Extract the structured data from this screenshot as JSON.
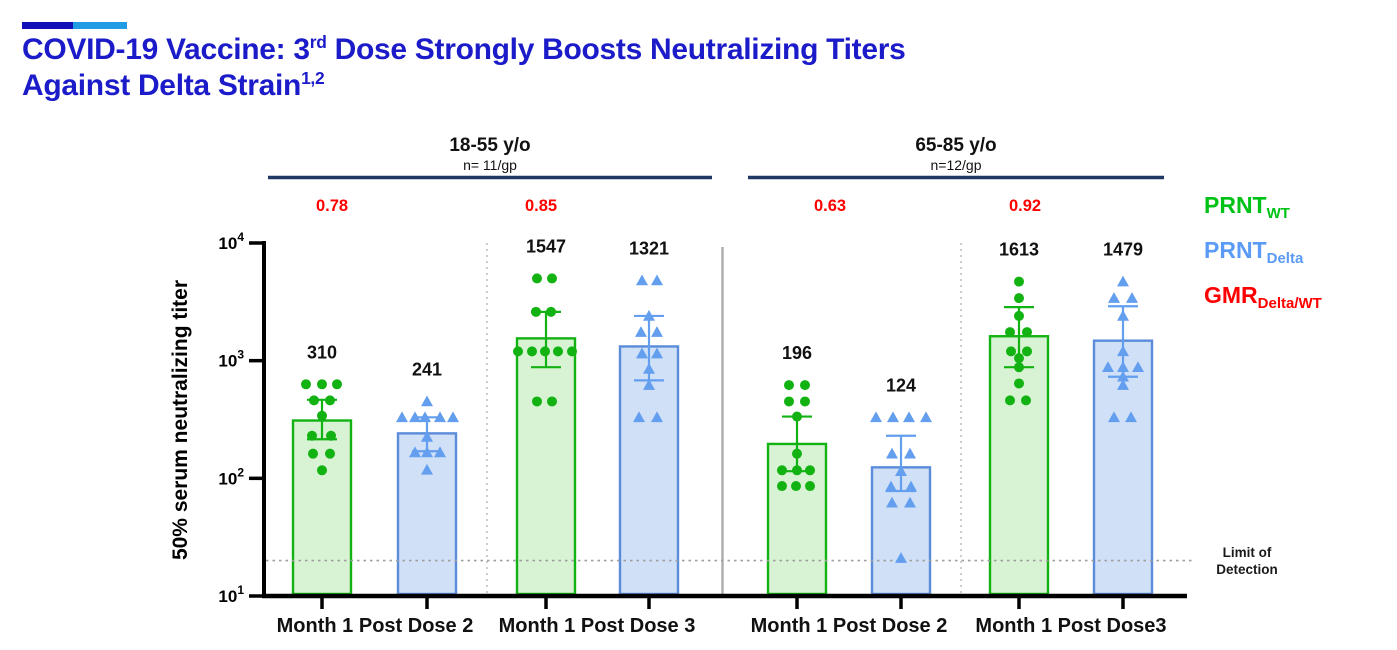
{
  "header": {
    "accent": {
      "dark_color": "#1111B7",
      "light_color": "#1F9CE4"
    },
    "title": {
      "color": "#1B1BC9",
      "line1_pre": "COVID-19 Vaccine: 3",
      "line1_sup": "rd",
      "line1_post": " Dose Strongly Boosts Neutralizing Titers",
      "line2_pre": "Against Delta Strain",
      "line2_sup": "1,2"
    }
  },
  "chart_data": {
    "type": "bar",
    "y_scale": "log10",
    "ylim": [
      10,
      10000
    ],
    "ylabel": "50% serum neutralizing titer",
    "y_tick_exponents": [
      1,
      2,
      3,
      4
    ],
    "grid": false,
    "limit_of_detection": {
      "value": 20,
      "label_line1": "Limit of",
      "label_line2": "Detection"
    },
    "age_groups": [
      {
        "label": "18-55 y/o",
        "n_label": "n= 11/gp"
      },
      {
        "label": "65-85 y/o",
        "n_label": "n=12/gp"
      }
    ],
    "x_categories": [
      "Month 1 Post Dose 2",
      "Month 1 Post Dose 3",
      "Month 1 Post Dose 2",
      "Month 1 Post  Dose3"
    ],
    "gmr_values": [
      "0.78",
      "0.85",
      "0.63",
      "0.92"
    ],
    "gmr_color": "#FF0000",
    "legend": [
      {
        "main": "PRNT",
        "sub": "WT",
        "color": "#00C216"
      },
      {
        "main": "PRNT",
        "sub": "Delta",
        "color": "#5B9BF5"
      },
      {
        "main": "GMR",
        "sub": "Delta/WT",
        "color": "#FF0000"
      }
    ],
    "series_colors": {
      "wt": {
        "marker": "#12B212",
        "bar_fill": "#D7F3D3",
        "bar_stroke": "#12B212"
      },
      "delta": {
        "marker": "#639EEF",
        "bar_fill": "#CFE0F7",
        "bar_stroke": "#5B8CD9"
      }
    },
    "bars": [
      {
        "series": "wt",
        "age_group": "18-55 y/o",
        "timepoint": "Month 1 Post Dose 2",
        "geometric_mean": 310,
        "label": "310",
        "ci": [
          215,
          465
        ],
        "points": [
          [
            -16,
            630
          ],
          [
            0,
            630
          ],
          [
            15,
            630
          ],
          [
            -8,
            460
          ],
          [
            8,
            460
          ],
          [
            0,
            340
          ],
          [
            -10,
            230
          ],
          [
            9,
            230
          ],
          [
            -9,
            162
          ],
          [
            8,
            162
          ],
          [
            0,
            117
          ]
        ]
      },
      {
        "series": "delta",
        "age_group": "18-55 y/o",
        "timepoint": "Month 1 Post Dose 2",
        "geometric_mean": 241,
        "label": "241",
        "ci": [
          170,
          330
        ],
        "points": [
          [
            0,
            450
          ],
          [
            -25,
            330
          ],
          [
            -12,
            330
          ],
          [
            -2,
            330
          ],
          [
            13,
            330
          ],
          [
            26,
            330
          ],
          [
            0,
            225
          ],
          [
            -12,
            166
          ],
          [
            0,
            166
          ],
          [
            13,
            166
          ],
          [
            0,
            118
          ]
        ]
      },
      {
        "series": "wt",
        "age_group": "18-55 y/o",
        "timepoint": "Month 1 Post Dose 3",
        "geometric_mean": 1547,
        "label": "1547",
        "ci": [
          880,
          2600
        ],
        "points": [
          [
            -9,
            5000
          ],
          [
            6,
            5000
          ],
          [
            -10,
            2600
          ],
          [
            5,
            2600
          ],
          [
            -28,
            1200
          ],
          [
            -14,
            1200
          ],
          [
            -1,
            1200
          ],
          [
            12,
            1200
          ],
          [
            26,
            1200
          ],
          [
            -9,
            450
          ],
          [
            6,
            450
          ]
        ]
      },
      {
        "series": "delta",
        "age_group": "18-55 y/o",
        "timepoint": "Month 1 Post Dose 3",
        "geometric_mean": 1321,
        "label": "1321",
        "ci": [
          680,
          2400
        ],
        "points": [
          [
            -7,
            4800
          ],
          [
            8,
            4800
          ],
          [
            0,
            2400
          ],
          [
            -8,
            1750
          ],
          [
            8,
            1750
          ],
          [
            -7,
            1150
          ],
          [
            8,
            1150
          ],
          [
            0,
            850
          ],
          [
            0,
            620
          ],
          [
            -10,
            330
          ],
          [
            8,
            330
          ]
        ]
      },
      {
        "series": "wt",
        "age_group": "65-85 y/o",
        "timepoint": "Month 1 Post Dose 2",
        "geometric_mean": 196,
        "label": "196",
        "ci": [
          115,
          335
        ],
        "points": [
          [
            -8,
            620
          ],
          [
            8,
            620
          ],
          [
            -8,
            450
          ],
          [
            8,
            450
          ],
          [
            0,
            335
          ],
          [
            0,
            162
          ],
          [
            -15,
            117
          ],
          [
            0,
            117
          ],
          [
            13,
            117
          ],
          [
            -15,
            86
          ],
          [
            -1,
            86
          ],
          [
            13,
            86
          ]
        ]
      },
      {
        "series": "delta",
        "age_group": "65-85 y/o",
        "timepoint": "Month 1 Post Dose 2",
        "geometric_mean": 124,
        "label": "124",
        "ci": [
          78,
          230
        ],
        "points": [
          [
            -25,
            330
          ],
          [
            -8,
            330
          ],
          [
            8,
            330
          ],
          [
            25,
            330
          ],
          [
            -9,
            162
          ],
          [
            9,
            162
          ],
          [
            0,
            115
          ],
          [
            -10,
            85
          ],
          [
            10,
            85
          ],
          [
            -9,
            62
          ],
          [
            9,
            62
          ],
          [
            0,
            21
          ]
        ]
      },
      {
        "series": "wt",
        "age_group": "65-85 y/o",
        "timepoint": "Month 1 Post Dose 3",
        "geometric_mean": 1613,
        "label": "1613",
        "ci": [
          880,
          2850
        ],
        "points": [
          [
            0,
            4700
          ],
          [
            0,
            3400
          ],
          [
            0,
            2400
          ],
          [
            -9,
            1750
          ],
          [
            8,
            1750
          ],
          [
            -8,
            1200
          ],
          [
            8,
            1200
          ],
          [
            0,
            1050
          ],
          [
            0,
            880
          ],
          [
            0,
            640
          ],
          [
            -9,
            460
          ],
          [
            7,
            460
          ]
        ]
      },
      {
        "series": "delta",
        "age_group": "65-85 y/o",
        "timepoint": "Month 1 Post Dose 3",
        "geometric_mean": 1479,
        "label": "1479",
        "ci": [
          730,
          2900
        ],
        "points": [
          [
            0,
            4700
          ],
          [
            -9,
            3400
          ],
          [
            9,
            3400
          ],
          [
            0,
            2400
          ],
          [
            0,
            1200
          ],
          [
            -15,
            880
          ],
          [
            0,
            880
          ],
          [
            15,
            880
          ],
          [
            0,
            730
          ],
          [
            0,
            620
          ],
          [
            -9,
            330
          ],
          [
            8,
            330
          ]
        ]
      }
    ]
  }
}
